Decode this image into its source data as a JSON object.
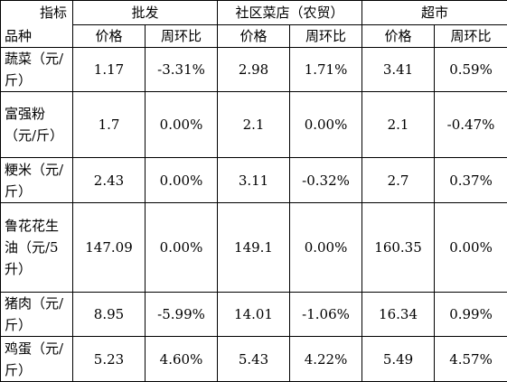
{
  "header": {
    "corner_top": "指标",
    "corner_bottom": "品种",
    "groups": [
      "批发",
      "社区菜店（农贸）",
      "超市"
    ],
    "columns": [
      "价格",
      "周环比",
      "价格",
      "周环比",
      "价格",
      "周环比"
    ]
  },
  "table": {
    "rows": [
      [
        "蔬菜（元/斤）",
        "1.17",
        "-3.31%",
        "2.98",
        "1.71%",
        "3.41",
        "0.59%"
      ],
      [
        "富强粉（元/斤）",
        "1.7",
        "0.00%",
        "2.1",
        "0.00%",
        "2.1",
        "-0.47%"
      ],
      [
        "粳米（元/斤）",
        "2.43",
        "0.00%",
        "3.11",
        "-0.32%",
        "2.7",
        "0.37%"
      ],
      [
        "鲁花花生油（元/5升）",
        "147.09",
        "0.00%",
        "149.1",
        "0.00%",
        "160.35",
        "0.00%"
      ],
      [
        "猪肉（元/斤）",
        "8.95",
        "-5.99%",
        "14.01",
        "-1.06%",
        "16.34",
        "0.99%"
      ],
      [
        "鸡蛋（元/斤）",
        "5.23",
        "4.60%",
        "5.43",
        "4.22%",
        "5.49",
        "4.57%"
      ]
    ]
  }
}
